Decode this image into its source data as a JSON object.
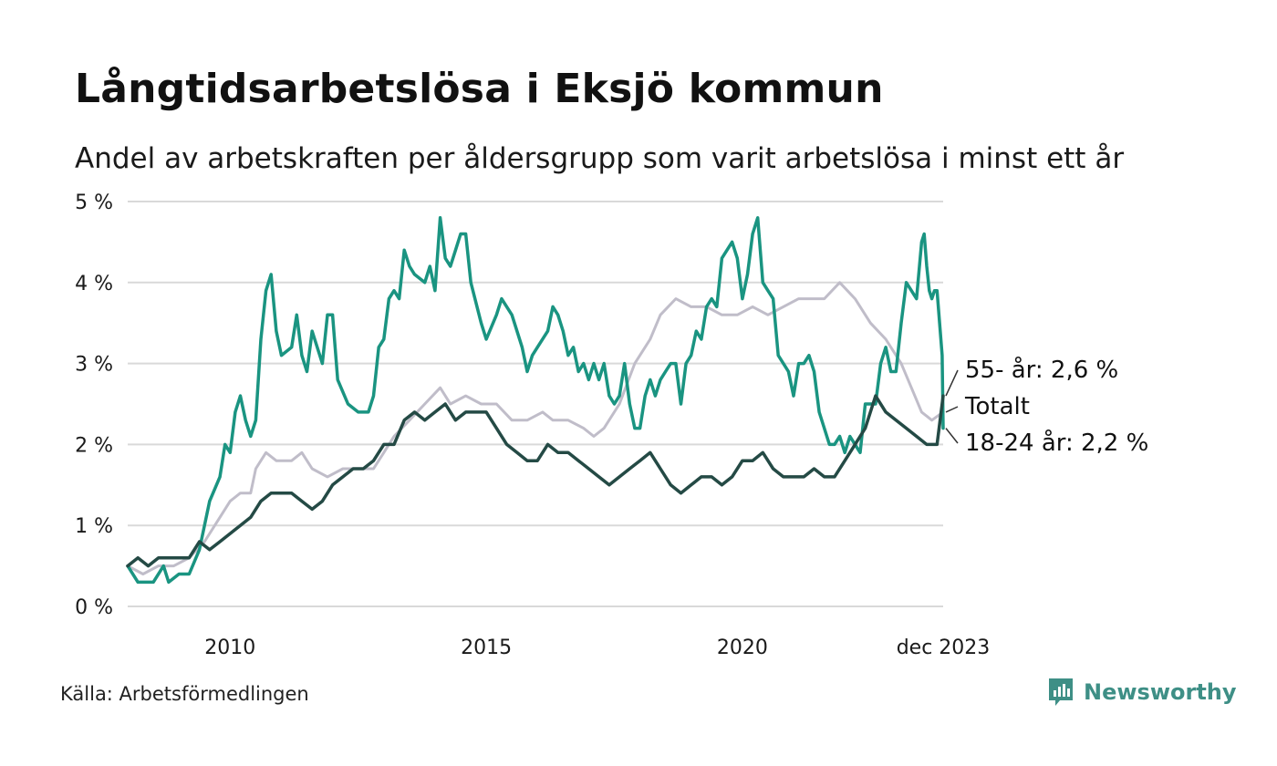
{
  "title": "Långtidsarbetslösa i Eksjö kommun",
  "subtitle": "Andel av arbetskraften per åldersgrupp som varit arbetslösa i minst ett år",
  "source": "Källa: Arbetsförmedlingen",
  "brand": {
    "name": "Newsworthy",
    "icon": "newsworthy-logo-icon",
    "color": "#3e8f86"
  },
  "chart_data": {
    "type": "line",
    "title": "Långtidsarbetslösa i Eksjö kommun",
    "xlabel": "",
    "ylabel": "",
    "x_range": [
      2008.0,
      2023.92
    ],
    "ylim": [
      0,
      5
    ],
    "y_ticks": [
      0,
      1,
      2,
      3,
      4,
      5
    ],
    "y_tick_labels": [
      "0 %",
      "1 %",
      "2 %",
      "3 %",
      "4 %",
      "5 %"
    ],
    "x_ticks": [
      2010,
      2015,
      2020,
      2023.92
    ],
    "x_tick_labels": [
      "2010",
      "2015",
      "2020",
      "dec 2023"
    ],
    "grid": true,
    "series": [
      {
        "name": "Totalt",
        "label": "Totalt",
        "color": "#c0bdc9",
        "points": [
          [
            2008.0,
            0.5
          ],
          [
            2008.3,
            0.4
          ],
          [
            2008.6,
            0.5
          ],
          [
            2008.9,
            0.5
          ],
          [
            2009.2,
            0.6
          ],
          [
            2009.5,
            0.8
          ],
          [
            2009.8,
            1.1
          ],
          [
            2010.0,
            1.3
          ],
          [
            2010.2,
            1.4
          ],
          [
            2010.4,
            1.4
          ],
          [
            2010.5,
            1.7
          ],
          [
            2010.7,
            1.9
          ],
          [
            2010.9,
            1.8
          ],
          [
            2011.2,
            1.8
          ],
          [
            2011.4,
            1.9
          ],
          [
            2011.6,
            1.7
          ],
          [
            2011.9,
            1.6
          ],
          [
            2012.2,
            1.7
          ],
          [
            2012.5,
            1.7
          ],
          [
            2012.8,
            1.7
          ],
          [
            2013.0,
            1.9
          ],
          [
            2013.2,
            2.1
          ],
          [
            2013.5,
            2.3
          ],
          [
            2013.8,
            2.5
          ],
          [
            2014.1,
            2.7
          ],
          [
            2014.3,
            2.5
          ],
          [
            2014.6,
            2.6
          ],
          [
            2014.9,
            2.5
          ],
          [
            2015.2,
            2.5
          ],
          [
            2015.5,
            2.3
          ],
          [
            2015.8,
            2.3
          ],
          [
            2016.1,
            2.4
          ],
          [
            2016.3,
            2.3
          ],
          [
            2016.6,
            2.3
          ],
          [
            2016.9,
            2.2
          ],
          [
            2017.1,
            2.1
          ],
          [
            2017.3,
            2.2
          ],
          [
            2017.6,
            2.5
          ],
          [
            2017.9,
            3.0
          ],
          [
            2018.2,
            3.3
          ],
          [
            2018.4,
            3.6
          ],
          [
            2018.7,
            3.8
          ],
          [
            2019.0,
            3.7
          ],
          [
            2019.3,
            3.7
          ],
          [
            2019.6,
            3.6
          ],
          [
            2019.9,
            3.6
          ],
          [
            2020.2,
            3.7
          ],
          [
            2020.5,
            3.6
          ],
          [
            2020.8,
            3.7
          ],
          [
            2021.1,
            3.8
          ],
          [
            2021.3,
            3.8
          ],
          [
            2021.6,
            3.8
          ],
          [
            2021.9,
            4.0
          ],
          [
            2022.2,
            3.8
          ],
          [
            2022.5,
            3.5
          ],
          [
            2022.8,
            3.3
          ],
          [
            2023.1,
            3.0
          ],
          [
            2023.3,
            2.7
          ],
          [
            2023.5,
            2.4
          ],
          [
            2023.7,
            2.3
          ],
          [
            2023.92,
            2.4
          ]
        ]
      },
      {
        "name": "18-24 år",
        "label": "18-24 år: 2,2 %",
        "color": "#1a9481",
        "points": [
          [
            2008.0,
            0.5
          ],
          [
            2008.2,
            0.3
          ],
          [
            2008.5,
            0.3
          ],
          [
            2008.7,
            0.5
          ],
          [
            2008.8,
            0.3
          ],
          [
            2009.0,
            0.4
          ],
          [
            2009.2,
            0.4
          ],
          [
            2009.4,
            0.7
          ],
          [
            2009.6,
            1.3
          ],
          [
            2009.8,
            1.6
          ],
          [
            2009.9,
            2.0
          ],
          [
            2010.0,
            1.9
          ],
          [
            2010.1,
            2.4
          ],
          [
            2010.2,
            2.6
          ],
          [
            2010.3,
            2.3
          ],
          [
            2010.4,
            2.1
          ],
          [
            2010.5,
            2.3
          ],
          [
            2010.6,
            3.3
          ],
          [
            2010.7,
            3.9
          ],
          [
            2010.8,
            4.1
          ],
          [
            2010.9,
            3.4
          ],
          [
            2011.0,
            3.1
          ],
          [
            2011.2,
            3.2
          ],
          [
            2011.3,
            3.6
          ],
          [
            2011.4,
            3.1
          ],
          [
            2011.5,
            2.9
          ],
          [
            2011.6,
            3.4
          ],
          [
            2011.8,
            3.0
          ],
          [
            2011.9,
            3.6
          ],
          [
            2012.0,
            3.6
          ],
          [
            2012.1,
            2.8
          ],
          [
            2012.3,
            2.5
          ],
          [
            2012.5,
            2.4
          ],
          [
            2012.7,
            2.4
          ],
          [
            2012.8,
            2.6
          ],
          [
            2012.9,
            3.2
          ],
          [
            2013.0,
            3.3
          ],
          [
            2013.1,
            3.8
          ],
          [
            2013.2,
            3.9
          ],
          [
            2013.3,
            3.8
          ],
          [
            2013.4,
            4.4
          ],
          [
            2013.5,
            4.2
          ],
          [
            2013.6,
            4.1
          ],
          [
            2013.8,
            4.0
          ],
          [
            2013.9,
            4.2
          ],
          [
            2014.0,
            3.9
          ],
          [
            2014.1,
            4.8
          ],
          [
            2014.2,
            4.3
          ],
          [
            2014.3,
            4.2
          ],
          [
            2014.4,
            4.4
          ],
          [
            2014.5,
            4.6
          ],
          [
            2014.6,
            4.6
          ],
          [
            2014.7,
            4.0
          ],
          [
            2014.9,
            3.5
          ],
          [
            2015.0,
            3.3
          ],
          [
            2015.2,
            3.6
          ],
          [
            2015.3,
            3.8
          ],
          [
            2015.5,
            3.6
          ],
          [
            2015.7,
            3.2
          ],
          [
            2015.8,
            2.9
          ],
          [
            2015.9,
            3.1
          ],
          [
            2016.0,
            3.2
          ],
          [
            2016.2,
            3.4
          ],
          [
            2016.3,
            3.7
          ],
          [
            2016.4,
            3.6
          ],
          [
            2016.5,
            3.4
          ],
          [
            2016.6,
            3.1
          ],
          [
            2016.7,
            3.2
          ],
          [
            2016.8,
            2.9
          ],
          [
            2016.9,
            3.0
          ],
          [
            2017.0,
            2.8
          ],
          [
            2017.1,
            3.0
          ],
          [
            2017.2,
            2.8
          ],
          [
            2017.3,
            3.0
          ],
          [
            2017.4,
            2.6
          ],
          [
            2017.5,
            2.5
          ],
          [
            2017.6,
            2.6
          ],
          [
            2017.7,
            3.0
          ],
          [
            2017.8,
            2.5
          ],
          [
            2017.9,
            2.2
          ],
          [
            2018.0,
            2.2
          ],
          [
            2018.1,
            2.6
          ],
          [
            2018.2,
            2.8
          ],
          [
            2018.3,
            2.6
          ],
          [
            2018.4,
            2.8
          ],
          [
            2018.5,
            2.9
          ],
          [
            2018.6,
            3.0
          ],
          [
            2018.7,
            3.0
          ],
          [
            2018.8,
            2.5
          ],
          [
            2018.9,
            3.0
          ],
          [
            2019.0,
            3.1
          ],
          [
            2019.1,
            3.4
          ],
          [
            2019.2,
            3.3
          ],
          [
            2019.3,
            3.7
          ],
          [
            2019.4,
            3.8
          ],
          [
            2019.5,
            3.7
          ],
          [
            2019.6,
            4.3
          ],
          [
            2019.7,
            4.4
          ],
          [
            2019.8,
            4.5
          ],
          [
            2019.9,
            4.3
          ],
          [
            2020.0,
            3.8
          ],
          [
            2020.1,
            4.1
          ],
          [
            2020.2,
            4.6
          ],
          [
            2020.3,
            4.8
          ],
          [
            2020.4,
            4.0
          ],
          [
            2020.5,
            3.9
          ],
          [
            2020.6,
            3.8
          ],
          [
            2020.7,
            3.1
          ],
          [
            2020.8,
            3.0
          ],
          [
            2020.9,
            2.9
          ],
          [
            2021.0,
            2.6
          ],
          [
            2021.1,
            3.0
          ],
          [
            2021.2,
            3.0
          ],
          [
            2021.3,
            3.1
          ],
          [
            2021.4,
            2.9
          ],
          [
            2021.5,
            2.4
          ],
          [
            2021.6,
            2.2
          ],
          [
            2021.7,
            2.0
          ],
          [
            2021.8,
            2.0
          ],
          [
            2021.9,
            2.1
          ],
          [
            2022.0,
            1.9
          ],
          [
            2022.1,
            2.1
          ],
          [
            2022.2,
            2.0
          ],
          [
            2022.3,
            1.9
          ],
          [
            2022.4,
            2.5
          ],
          [
            2022.5,
            2.5
          ],
          [
            2022.6,
            2.5
          ],
          [
            2022.7,
            3.0
          ],
          [
            2022.8,
            3.2
          ],
          [
            2022.9,
            2.9
          ],
          [
            2023.0,
            2.9
          ],
          [
            2023.1,
            3.5
          ],
          [
            2023.2,
            4.0
          ],
          [
            2023.3,
            3.9
          ],
          [
            2023.4,
            3.8
          ],
          [
            2023.5,
            4.5
          ],
          [
            2023.55,
            4.6
          ],
          [
            2023.6,
            4.2
          ],
          [
            2023.65,
            3.9
          ],
          [
            2023.7,
            3.8
          ],
          [
            2023.75,
            3.9
          ],
          [
            2023.8,
            3.9
          ],
          [
            2023.85,
            3.5
          ],
          [
            2023.9,
            3.1
          ],
          [
            2023.92,
            2.2
          ]
        ]
      },
      {
        "name": "55- år",
        "label": "55- år: 2,6 %",
        "color": "#244a45",
        "points": [
          [
            2008.0,
            0.5
          ],
          [
            2008.2,
            0.6
          ],
          [
            2008.4,
            0.5
          ],
          [
            2008.6,
            0.6
          ],
          [
            2008.8,
            0.6
          ],
          [
            2009.0,
            0.6
          ],
          [
            2009.2,
            0.6
          ],
          [
            2009.4,
            0.8
          ],
          [
            2009.6,
            0.7
          ],
          [
            2009.8,
            0.8
          ],
          [
            2010.0,
            0.9
          ],
          [
            2010.2,
            1.0
          ],
          [
            2010.4,
            1.1
          ],
          [
            2010.6,
            1.3
          ],
          [
            2010.8,
            1.4
          ],
          [
            2011.0,
            1.4
          ],
          [
            2011.2,
            1.4
          ],
          [
            2011.4,
            1.3
          ],
          [
            2011.6,
            1.2
          ],
          [
            2011.8,
            1.3
          ],
          [
            2012.0,
            1.5
          ],
          [
            2012.2,
            1.6
          ],
          [
            2012.4,
            1.7
          ],
          [
            2012.6,
            1.7
          ],
          [
            2012.8,
            1.8
          ],
          [
            2013.0,
            2.0
          ],
          [
            2013.2,
            2.0
          ],
          [
            2013.4,
            2.3
          ],
          [
            2013.6,
            2.4
          ],
          [
            2013.8,
            2.3
          ],
          [
            2014.0,
            2.4
          ],
          [
            2014.2,
            2.5
          ],
          [
            2014.4,
            2.3
          ],
          [
            2014.6,
            2.4
          ],
          [
            2014.8,
            2.4
          ],
          [
            2015.0,
            2.4
          ],
          [
            2015.2,
            2.2
          ],
          [
            2015.4,
            2.0
          ],
          [
            2015.6,
            1.9
          ],
          [
            2015.8,
            1.8
          ],
          [
            2016.0,
            1.8
          ],
          [
            2016.2,
            2.0
          ],
          [
            2016.4,
            1.9
          ],
          [
            2016.6,
            1.9
          ],
          [
            2016.8,
            1.8
          ],
          [
            2017.0,
            1.7
          ],
          [
            2017.2,
            1.6
          ],
          [
            2017.4,
            1.5
          ],
          [
            2017.6,
            1.6
          ],
          [
            2017.8,
            1.7
          ],
          [
            2018.0,
            1.8
          ],
          [
            2018.2,
            1.9
          ],
          [
            2018.4,
            1.7
          ],
          [
            2018.6,
            1.5
          ],
          [
            2018.8,
            1.4
          ],
          [
            2019.0,
            1.5
          ],
          [
            2019.2,
            1.6
          ],
          [
            2019.4,
            1.6
          ],
          [
            2019.6,
            1.5
          ],
          [
            2019.8,
            1.6
          ],
          [
            2020.0,
            1.8
          ],
          [
            2020.2,
            1.8
          ],
          [
            2020.4,
            1.9
          ],
          [
            2020.6,
            1.7
          ],
          [
            2020.8,
            1.6
          ],
          [
            2021.0,
            1.6
          ],
          [
            2021.2,
            1.6
          ],
          [
            2021.4,
            1.7
          ],
          [
            2021.6,
            1.6
          ],
          [
            2021.8,
            1.6
          ],
          [
            2022.0,
            1.8
          ],
          [
            2022.2,
            2.0
          ],
          [
            2022.4,
            2.2
          ],
          [
            2022.6,
            2.6
          ],
          [
            2022.8,
            2.4
          ],
          [
            2023.0,
            2.3
          ],
          [
            2023.2,
            2.2
          ],
          [
            2023.4,
            2.1
          ],
          [
            2023.6,
            2.0
          ],
          [
            2023.8,
            2.0
          ],
          [
            2023.92,
            2.6
          ]
        ]
      }
    ]
  }
}
